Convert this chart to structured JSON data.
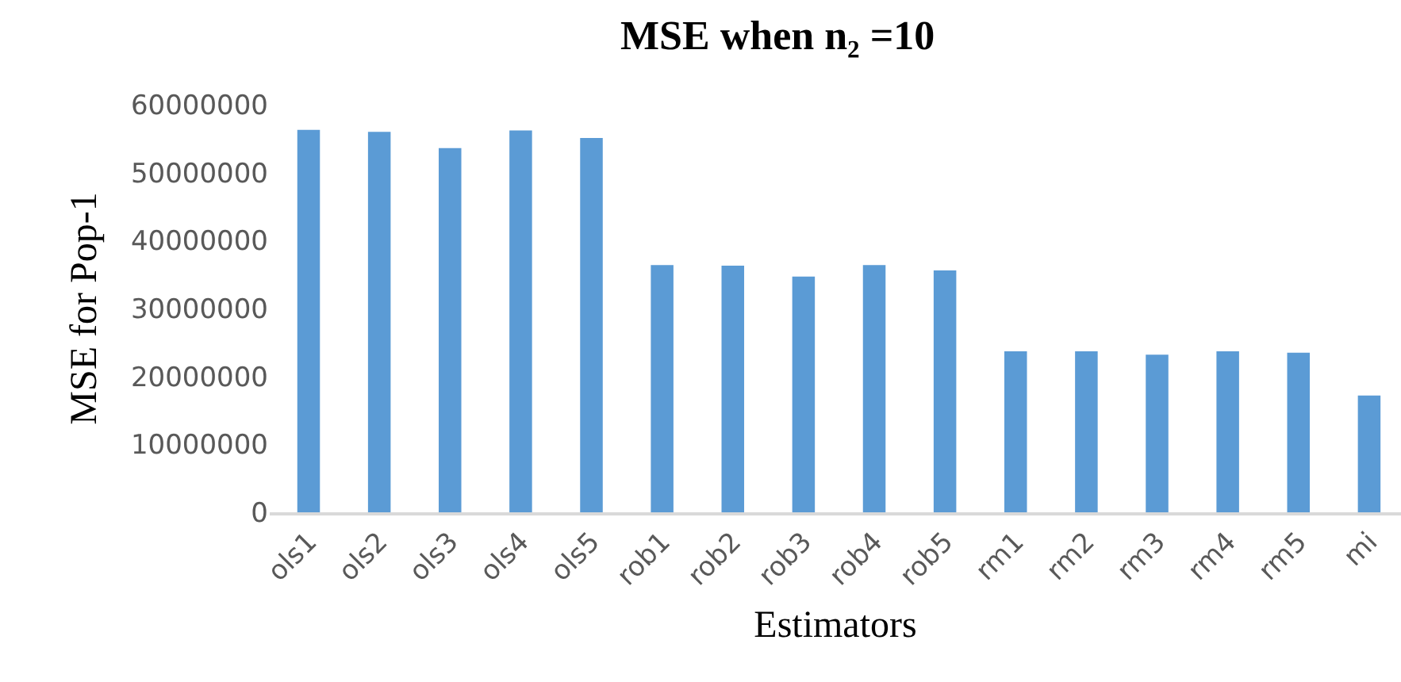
{
  "chart_data": {
    "type": "bar",
    "title": "MSE when n₂ =10",
    "xlabel": "Estimators",
    "ylabel": "MSE for Pop-1",
    "categories": [
      "ols1",
      "ols2",
      "ols3",
      "ols4",
      "ols5",
      "rob1",
      "rob2",
      "rob3",
      "rob4",
      "rob5",
      "rm1",
      "rm2",
      "rm3",
      "rm4",
      "rm5",
      "mi"
    ],
    "values": [
      56300000,
      56000000,
      53600000,
      56200000,
      55100000,
      36400000,
      36300000,
      34700000,
      36400000,
      35600000,
      23700000,
      23700000,
      23200000,
      23700000,
      23500000,
      17200000
    ],
    "color": "#5b9bd5",
    "ylim": [
      0,
      60000000
    ],
    "yticks": [
      0,
      10000000,
      20000000,
      30000000,
      40000000,
      50000000,
      60000000
    ],
    "grid": false
  }
}
